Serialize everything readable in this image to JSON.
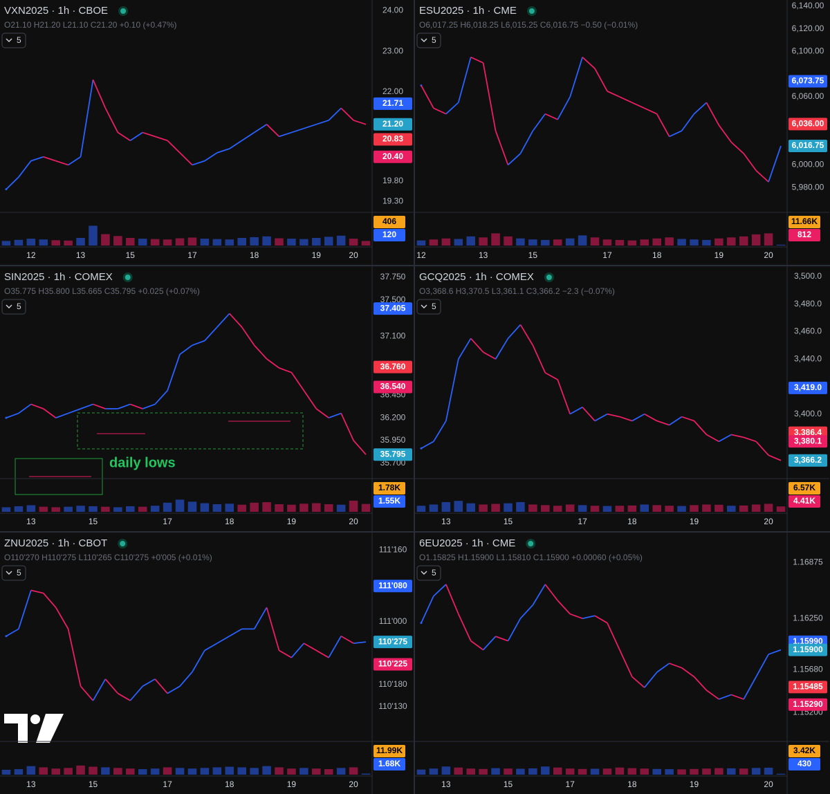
{
  "chart_data": [
    {
      "type": "line",
      "title": "VXN2025 · 1h · CBOE",
      "ohlc": "O21.10 H21.20 L21.10 C21.20 +0.10 (+0.47%)",
      "indicator_count": 5,
      "categories": [
        null,
        null,
        "12",
        null,
        null,
        null,
        "13",
        null,
        null,
        null,
        "15",
        null,
        null,
        null,
        null,
        "17",
        null,
        null,
        null,
        null,
        "18",
        null,
        null,
        null,
        null,
        "19",
        null,
        null,
        "20",
        null
      ],
      "values": [
        19.6,
        19.9,
        20.3,
        20.4,
        20.3,
        20.2,
        20.4,
        22.3,
        21.6,
        21.0,
        20.8,
        21.0,
        20.9,
        20.8,
        20.5,
        20.2,
        20.3,
        20.5,
        20.6,
        20.8,
        21.0,
        21.2,
        20.9,
        21.0,
        21.1,
        21.2,
        21.3,
        21.6,
        21.3,
        21.2
      ],
      "volume": [
        120,
        150,
        180,
        160,
        140,
        130,
        200,
        520,
        300,
        250,
        200,
        180,
        170,
        160,
        190,
        210,
        180,
        170,
        160,
        200,
        220,
        240,
        190,
        180,
        170,
        200,
        230,
        260,
        180,
        120
      ],
      "up_color": "#2962ff",
      "down_color": "#e91e63",
      "ylim": [
        19.1,
        24.18
      ],
      "vlim": [
        0,
        800
      ],
      "yticks": [
        {
          "value": 24,
          "label": "24.00"
        },
        {
          "value": 23,
          "label": "23.00"
        },
        {
          "value": 22,
          "label": "22.00"
        },
        {
          "value": 19.8,
          "label": "19.80"
        },
        {
          "value": 19.3,
          "label": "19.30"
        }
      ],
      "price_labels": [
        {
          "value": 21.71,
          "label": "21.71",
          "color": "#2962ff",
          "text_color": "#ffffff"
        },
        {
          "value": 21.2,
          "label": "21.20",
          "color": "#26a2c9",
          "text_color": "#ffffff"
        },
        {
          "value": 20.83,
          "label": "20.83",
          "color": "#f23645",
          "text_color": "#ffffff"
        },
        {
          "value": 20.4,
          "label": "20.40",
          "color": "#e91e63",
          "text_color": "#ffffff"
        }
      ],
      "volume_labels": [
        {
          "value": 406,
          "label": "406",
          "color": "#f7a21b",
          "text_color": "#000000"
        },
        {
          "value": 120,
          "label": "120",
          "color": "#2962ff",
          "text_color": "#ffffff"
        }
      ]
    },
    {
      "type": "line",
      "title": "ESU2025 · 1h · CME",
      "ohlc": "O6,017.25 H6,018.25 L6,015.25 C6,016.75 −0.50 (−0.01%)",
      "indicator_count": 5,
      "categories": [
        "12",
        null,
        null,
        null,
        null,
        "13",
        null,
        null,
        null,
        "15",
        null,
        null,
        null,
        null,
        null,
        "17",
        null,
        null,
        null,
        "18",
        null,
        null,
        null,
        null,
        "19",
        null,
        null,
        null,
        "20",
        null
      ],
      "values": [
        6070,
        6050,
        6045,
        6055,
        6095,
        6090,
        6030,
        6000,
        6010,
        6030,
        6045,
        6040,
        6060,
        6095,
        6085,
        6065,
        6060,
        6055,
        6050,
        6045,
        6025,
        6030,
        6045,
        6055,
        6035,
        6020,
        6010,
        5995,
        5985,
        6016.75
      ],
      "volume": [
        5000,
        6000,
        7000,
        6500,
        9000,
        8000,
        12000,
        9000,
        7000,
        6000,
        5500,
        6000,
        7000,
        10000,
        8000,
        6000,
        5500,
        5000,
        6000,
        7000,
        8000,
        6500,
        6000,
        5500,
        7000,
        8000,
        9000,
        11000,
        12000,
        812
      ],
      "up_color": "#2962ff",
      "down_color": "#e91e63",
      "ylim": [
        5960.6,
        6142.4
      ],
      "vlim": [
        0,
        30000
      ],
      "yticks": [
        {
          "value": 6140,
          "label": "6,140.00"
        },
        {
          "value": 6120,
          "label": "6,120.00"
        },
        {
          "value": 6100,
          "label": "6,100.00"
        },
        {
          "value": 6060,
          "label": "6,060.00"
        },
        {
          "value": 6000,
          "label": "6,000.00"
        },
        {
          "value": 5980,
          "label": "5,980.00"
        }
      ],
      "price_labels": [
        {
          "value": 6073.75,
          "label": "6,073.75",
          "color": "#2962ff",
          "text_color": "#ffffff"
        },
        {
          "value": 6036,
          "label": "6,036.00",
          "color": "#f23645",
          "text_color": "#ffffff"
        },
        {
          "value": 6016.75,
          "label": "6,016.75",
          "color": "#26a2c9",
          "text_color": "#ffffff"
        }
      ],
      "volume_labels": [
        {
          "value": 11660,
          "label": "11.66K",
          "color": "#f7a21b",
          "text_color": "#000000"
        },
        {
          "value": 812,
          "label": "812",
          "color": "#e91e63",
          "text_color": "#ffffff"
        }
      ]
    },
    {
      "type": "line",
      "title": "SIN2025 · 1h · COMEX",
      "ohlc": "O35.775 H35.800 L35.665 C35.795 +0.025 (+0.07%)",
      "indicator_count": 5,
      "annotation": "daily lows",
      "categories": [
        null,
        null,
        "13",
        null,
        null,
        null,
        null,
        "15",
        null,
        null,
        null,
        null,
        null,
        "17",
        null,
        null,
        null,
        null,
        "18",
        null,
        null,
        null,
        null,
        "19",
        null,
        null,
        null,
        null,
        "20",
        null
      ],
      "values": [
        36.2,
        36.25,
        36.35,
        36.3,
        36.2,
        36.25,
        36.3,
        36.35,
        36.3,
        36.3,
        36.35,
        36.3,
        36.35,
        36.5,
        36.9,
        37.0,
        37.05,
        37.2,
        37.35,
        37.2,
        37.0,
        36.85,
        36.75,
        36.7,
        36.5,
        36.3,
        36.2,
        36.25,
        35.95,
        35.795
      ],
      "volume": [
        900,
        1100,
        1300,
        1000,
        900,
        1000,
        1200,
        1100,
        1000,
        900,
        1100,
        1000,
        1200,
        1800,
        2400,
        2000,
        1700,
        1500,
        1600,
        1400,
        1800,
        1900,
        1500,
        1400,
        1600,
        1700,
        1500,
        1400,
        2200,
        1550
      ],
      "up_color": "#2962ff",
      "down_color": "#e91e63",
      "ylim": [
        35.56,
        37.833
      ],
      "vlim": [
        0,
        6000
      ],
      "yticks": [
        {
          "value": 37.75,
          "label": "37.750"
        },
        {
          "value": 37.5,
          "label": "37.500"
        },
        {
          "value": 37.1,
          "label": "37.100"
        },
        {
          "value": 36.45,
          "label": "36.450"
        },
        {
          "value": 36.2,
          "label": "36.200"
        },
        {
          "value": 35.95,
          "label": "35.950"
        },
        {
          "value": 35.7,
          "label": "35.700"
        }
      ],
      "price_labels": [
        {
          "value": 37.405,
          "label": "37.405",
          "color": "#2962ff",
          "text_color": "#ffffff"
        },
        {
          "value": 36.76,
          "label": "36.760",
          "color": "#f23645",
          "text_color": "#ffffff"
        },
        {
          "value": 36.54,
          "label": "36.540",
          "color": "#e91e63",
          "text_color": "#ffffff"
        },
        {
          "value": 35.795,
          "label": "35.795",
          "color": "#26a2c9",
          "text_color": "#ffffff"
        }
      ],
      "volume_labels": [
        {
          "value": 1780,
          "label": "1.78K",
          "color": "#f7a21b",
          "text_color": "#000000"
        },
        {
          "value": 1550,
          "label": "1.55K",
          "color": "#2962ff",
          "text_color": "#ffffff"
        }
      ]
    },
    {
      "type": "line",
      "title": "GCQ2025 · 1h · COMEX",
      "ohlc": "O3,368.6 H3,370.5 L3,361.1 C3,366.2 −2.3 (−0.07%)",
      "indicator_count": 5,
      "categories": [
        null,
        null,
        "13",
        null,
        null,
        null,
        null,
        "15",
        null,
        null,
        null,
        null,
        null,
        "17",
        null,
        null,
        null,
        "18",
        null,
        null,
        null,
        null,
        "19",
        null,
        null,
        null,
        null,
        null,
        "20",
        null
      ],
      "values": [
        3375,
        3380,
        3395,
        3440,
        3455,
        3445,
        3440,
        3455,
        3465,
        3450,
        3430,
        3425,
        3400,
        3405,
        3395,
        3400,
        3398,
        3395,
        3400,
        3395,
        3392,
        3398,
        3395,
        3385,
        3380,
        3385,
        3383,
        3380,
        3370,
        3366.2
      ],
      "volume": [
        5000,
        6000,
        8000,
        9000,
        7000,
        6000,
        6500,
        7000,
        8000,
        6000,
        5500,
        5000,
        6000,
        5500,
        5000,
        4800,
        5000,
        5200,
        6000,
        5500,
        5000,
        4800,
        5500,
        6000,
        5800,
        5000,
        5200,
        6000,
        6570,
        4410
      ],
      "up_color": "#2962ff",
      "down_color": "#e91e63",
      "ylim": [
        3355,
        3505
      ],
      "vlim": [
        0,
        25000
      ],
      "yticks": [
        {
          "value": 3500,
          "label": "3,500.0"
        },
        {
          "value": 3480,
          "label": "3,480.0"
        },
        {
          "value": 3460,
          "label": "3,460.0"
        },
        {
          "value": 3440,
          "label": "3,440.0"
        },
        {
          "value": 3400,
          "label": "3,400.0"
        }
      ],
      "price_labels": [
        {
          "value": 3419,
          "label": "3,419.0",
          "color": "#2962ff",
          "text_color": "#ffffff"
        },
        {
          "value": 3386.4,
          "label": "3,386.4",
          "color": "#f23645",
          "text_color": "#ffffff"
        },
        {
          "value": 3380.1,
          "label": "3,380.1",
          "color": "#e91e63",
          "text_color": "#ffffff"
        },
        {
          "value": 3366.2,
          "label": "3,366.2",
          "color": "#26a2c9",
          "text_color": "#ffffff"
        }
      ],
      "volume_labels": [
        {
          "value": 6570,
          "label": "6.57K",
          "color": "#f7a21b",
          "text_color": "#000000"
        },
        {
          "value": 4410,
          "label": "4.41K",
          "color": "#e91e63",
          "text_color": "#ffffff"
        }
      ]
    },
    {
      "type": "line",
      "title": "ZNU2025 · 1h · CBOT",
      "ohlc": "O110'270 H110'275 L110'265 C110'275 +0'005 (+0.01%)",
      "indicator_count": 5,
      "categories": [
        null,
        null,
        "13",
        null,
        null,
        null,
        null,
        "15",
        null,
        null,
        null,
        null,
        null,
        "17",
        null,
        null,
        null,
        null,
        "18",
        null,
        null,
        null,
        null,
        "19",
        null,
        null,
        null,
        null,
        "20",
        null
      ],
      "values": [
        110.9,
        110.95,
        111.22,
        111.2,
        111.1,
        110.95,
        110.55,
        110.45,
        110.6,
        110.5,
        110.45,
        110.55,
        110.6,
        110.5,
        110.55,
        110.65,
        110.8,
        110.85,
        110.9,
        110.95,
        110.95,
        111.1,
        110.8,
        110.75,
        110.85,
        110.8,
        110.75,
        110.9,
        110.85,
        110.859375
      ],
      "volume": [
        8000,
        9000,
        14000,
        12000,
        10000,
        11000,
        15000,
        13000,
        12000,
        11000,
        10000,
        9000,
        10000,
        12000,
        11000,
        10000,
        11000,
        12000,
        13000,
        12000,
        11000,
        14000,
        12000,
        10000,
        11000,
        10000,
        9000,
        11000,
        12000,
        1680
      ],
      "up_color": "#2962ff",
      "down_color": "#e91e63",
      "ylim": [
        110.184,
        111.599
      ],
      "vlim": [
        0,
        50000
      ],
      "yticks": [
        {
          "value": 111.5,
          "label": "111'160"
        },
        {
          "value": 111,
          "label": "111'000"
        },
        {
          "value": 110.5625,
          "label": "110'180"
        },
        {
          "value": 110.40625,
          "label": "110'130"
        }
      ],
      "price_labels": [
        {
          "value": 111.25,
          "label": "111'080",
          "color": "#2962ff",
          "text_color": "#ffffff"
        },
        {
          "value": 110.859375,
          "label": "110'275",
          "color": "#26a2c9",
          "text_color": "#ffffff"
        },
        {
          "value": 110.703125,
          "label": "110'225",
          "color": "#e91e63",
          "text_color": "#ffffff"
        }
      ],
      "volume_labels": [
        {
          "value": 11990,
          "label": "11.99K",
          "color": "#f7a21b",
          "text_color": "#000000"
        },
        {
          "value": 1680,
          "label": "1.68K",
          "color": "#2962ff",
          "text_color": "#ffffff"
        }
      ]
    },
    {
      "type": "line",
      "title": "6EU2025 · 1h · CME",
      "ohlc": "O1.15825 H1.15900 L1.15810 C1.15900 +0.00060 (+0.05%)",
      "indicator_count": 5,
      "categories": [
        null,
        null,
        "13",
        null,
        null,
        null,
        null,
        "15",
        null,
        null,
        null,
        null,
        "17",
        null,
        null,
        null,
        null,
        "18",
        null,
        null,
        null,
        null,
        "19",
        null,
        null,
        null,
        null,
        null,
        "20",
        null
      ],
      "values": [
        1.162,
        1.165,
        1.1663,
        1.163,
        1.16,
        1.159,
        1.1605,
        1.16,
        1.1625,
        1.164,
        1.1663,
        1.1645,
        1.163,
        1.1625,
        1.1628,
        1.162,
        1.159,
        1.156,
        1.1548,
        1.1565,
        1.1575,
        1.157,
        1.156,
        1.1545,
        1.1535,
        1.154,
        1.1535,
        1.156,
        1.1585,
        1.159
      ],
      "volume": [
        2500,
        3000,
        4000,
        3500,
        3000,
        2800,
        3200,
        3000,
        2900,
        3100,
        4000,
        3500,
        3000,
        2800,
        2900,
        3000,
        3500,
        3200,
        3000,
        2800,
        2700,
        2600,
        2800,
        3000,
        3200,
        3100,
        3000,
        3300,
        3420,
        430
      ],
      "up_color": "#2962ff",
      "down_color": "#e91e63",
      "ylim": [
        1.1491,
        1.17169
      ],
      "vlim": [
        0,
        15000
      ],
      "yticks": [
        {
          "value": 1.16875,
          "label": "1.16875"
        },
        {
          "value": 1.1625,
          "label": "1.16250"
        },
        {
          "value": 1.1568,
          "label": "1.15680"
        },
        {
          "value": 1.152,
          "label": "1.15200"
        }
      ],
      "price_labels": [
        {
          "value": 1.1599,
          "label": "1.15990",
          "color": "#2962ff",
          "text_color": "#ffffff"
        },
        {
          "value": 1.159,
          "label": "1.15900",
          "color": "#26a2c9",
          "text_color": "#ffffff"
        },
        {
          "value": 1.15485,
          "label": "1.15485",
          "color": "#f23645",
          "text_color": "#ffffff"
        },
        {
          "value": 1.1529,
          "label": "1.15290",
          "color": "#e91e63",
          "text_color": "#ffffff"
        }
      ],
      "volume_labels": [
        {
          "value": 3420,
          "label": "3.42K",
          "color": "#f7a21b",
          "text_color": "#000000"
        },
        {
          "value": 430,
          "label": "430",
          "color": "#2962ff",
          "text_color": "#ffffff"
        }
      ]
    }
  ]
}
